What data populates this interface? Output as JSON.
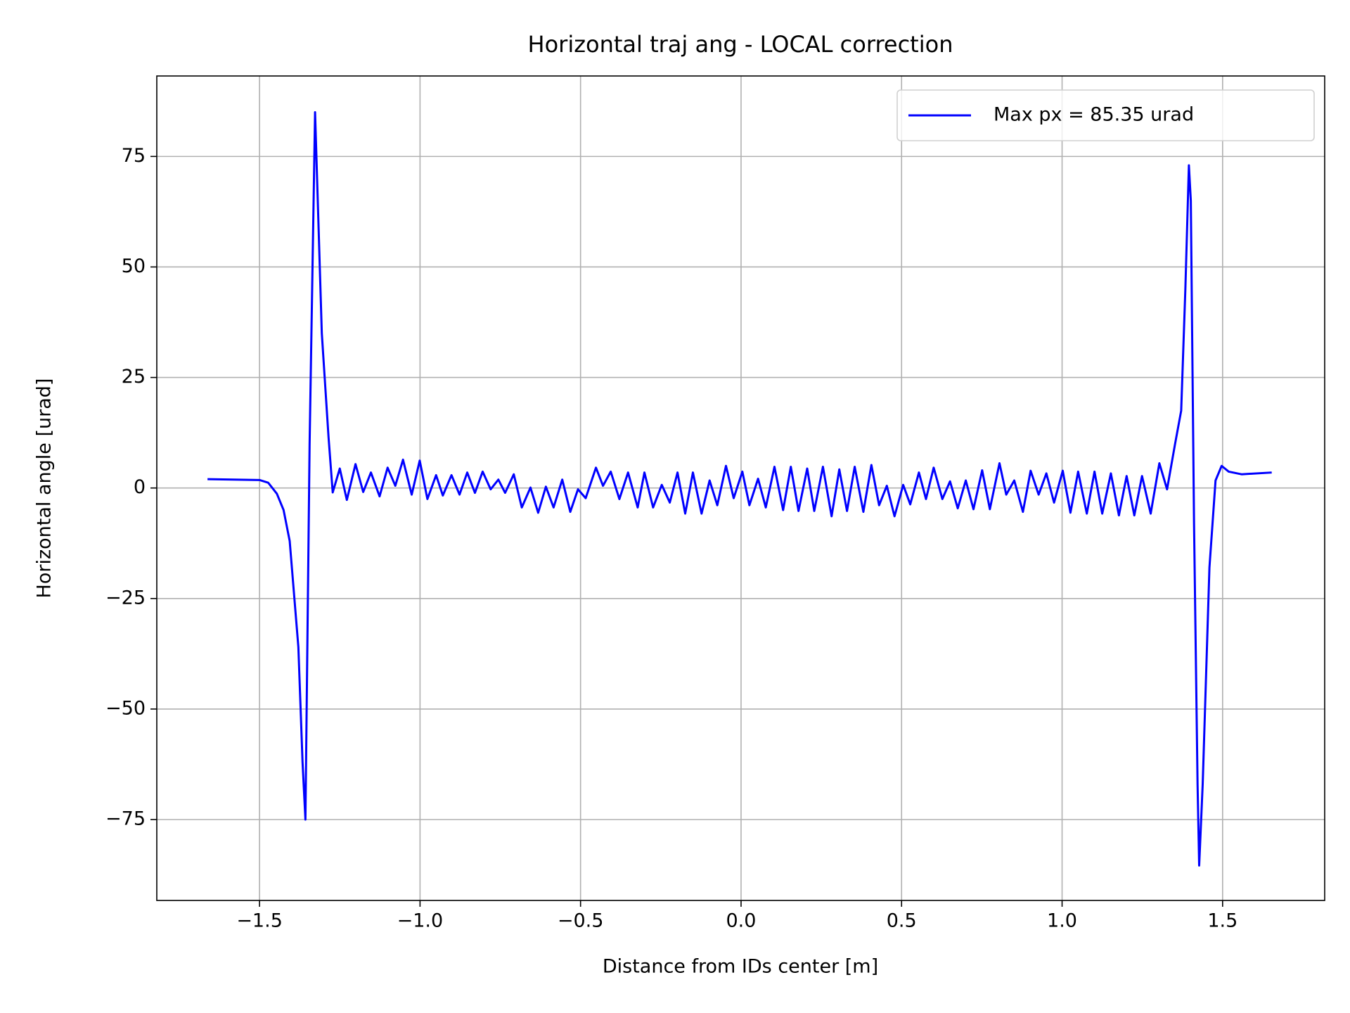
{
  "chart_data": {
    "type": "line",
    "title": "Horizontal traj ang - LOCAL correction",
    "xlabel": "Distance from IDs center [m]",
    "ylabel": "Horizontal angle [urad]",
    "xlim": [
      -1.82,
      1.818
    ],
    "ylim": [
      -93.3,
      93.2
    ],
    "xticks": [
      {
        "value": -1.5,
        "label": "−1.5"
      },
      {
        "value": -1.0,
        "label": "−1.0"
      },
      {
        "value": -0.5,
        "label": "−0.5"
      },
      {
        "value": 0,
        "label": "0.0"
      },
      0.5,
      {
        "value": 1.0,
        "label": "1.0"
      },
      1.5
    ],
    "yticks": [
      {
        "value": -75,
        "label": "−75"
      },
      {
        "value": -50,
        "label": "−50"
      },
      {
        "value": -25,
        "label": "−25"
      },
      0,
      25,
      50,
      75
    ],
    "grid": true,
    "legend": "upper right",
    "x": [
      -1.662,
      -1.5,
      -1.473,
      -1.446,
      -1.425,
      -1.406,
      -1.379,
      -1.366,
      -1.357,
      -1.344,
      -1.327,
      -1.306,
      -1.285,
      -1.272,
      -1.25,
      -1.228,
      -1.201,
      -1.177,
      -1.153,
      -1.126,
      -1.101,
      -1.077,
      -1.053,
      -1.026,
      -1.001,
      -0.977,
      -0.95,
      -0.929,
      -0.902,
      -0.877,
      -0.853,
      -0.829,
      -0.805,
      -0.78,
      -0.756,
      -0.735,
      -0.708,
      -0.683,
      -0.656,
      -0.632,
      -0.608,
      -0.584,
      -0.557,
      -0.532,
      -0.508,
      -0.484,
      -0.452,
      -0.43,
      -0.406,
      -0.379,
      -0.352,
      -0.322,
      -0.301,
      -0.274,
      -0.247,
      -0.222,
      -0.198,
      -0.174,
      -0.15,
      -0.123,
      -0.098,
      -0.074,
      -0.047,
      -0.023,
      0.004,
      0.026,
      0.053,
      0.077,
      0.104,
      0.131,
      0.155,
      0.179,
      0.206,
      0.228,
      0.255,
      0.282,
      0.306,
      0.33,
      0.354,
      0.381,
      0.406,
      0.43,
      0.454,
      0.478,
      0.505,
      0.527,
      0.554,
      0.576,
      0.6,
      0.627,
      0.651,
      0.675,
      0.7,
      0.724,
      0.751,
      0.775,
      0.805,
      0.826,
      0.851,
      0.878,
      0.902,
      0.927,
      0.951,
      0.975,
      1.002,
      1.026,
      1.05,
      1.077,
      1.101,
      1.125,
      1.152,
      1.177,
      1.201,
      1.225,
      1.249,
      1.276,
      1.303,
      1.327,
      1.352,
      1.371,
      1.384,
      1.395,
      1.401,
      1.411,
      1.422,
      1.427,
      1.438,
      1.459,
      1.478,
      1.497,
      1.519,
      1.559,
      1.653
    ],
    "series": [
      {
        "name": "Max px = 85.35 urad",
        "color": "#0000ff",
        "values": [
          2.0,
          1.8,
          1.2,
          -1.3,
          -5,
          -12,
          -36,
          -62,
          -75,
          10,
          85,
          35,
          11.5,
          -1,
          4.4,
          -2.7,
          5.4,
          -0.9,
          3.5,
          -1.9,
          4.6,
          0.5,
          6.4,
          -1.5,
          6.2,
          -2.5,
          2.9,
          -1.7,
          2.9,
          -1.5,
          3.5,
          -1.1,
          3.7,
          -0.3,
          1.9,
          -1.1,
          3.1,
          -4.4,
          0.1,
          -5.6,
          0.3,
          -4.4,
          1.9,
          -5.4,
          -0.3,
          -2.3,
          4.6,
          0.5,
          3.7,
          -2.5,
          3.5,
          -4.4,
          3.5,
          -4.4,
          0.7,
          -3.3,
          3.5,
          -5.8,
          3.5,
          -5.8,
          1.7,
          -3.9,
          5,
          -2.3,
          3.7,
          -3.9,
          2.1,
          -4.4,
          4.8,
          -5,
          4.8,
          -5.2,
          4.4,
          -5.2,
          4.8,
          -6.4,
          4.2,
          -5.2,
          4.8,
          -5.4,
          5.2,
          -3.9,
          0.5,
          -6.4,
          0.7,
          -3.7,
          3.5,
          -2.5,
          4.6,
          -2.5,
          1.5,
          -4.6,
          1.7,
          -4.8,
          4.0,
          -4.8,
          5.6,
          -1.5,
          1.7,
          -5.4,
          3.9,
          -1.5,
          3.3,
          -3.3,
          3.9,
          -5.6,
          3.7,
          -5.8,
          3.7,
          -5.8,
          3.3,
          -6.2,
          2.7,
          -6.2,
          2.7,
          -5.8,
          5.6,
          -0.3,
          10,
          17.5,
          45,
          73,
          65,
          -8,
          -67,
          -85.4,
          -67,
          -18,
          1.7,
          5,
          3.7,
          3.1,
          3.5
        ]
      }
    ]
  }
}
